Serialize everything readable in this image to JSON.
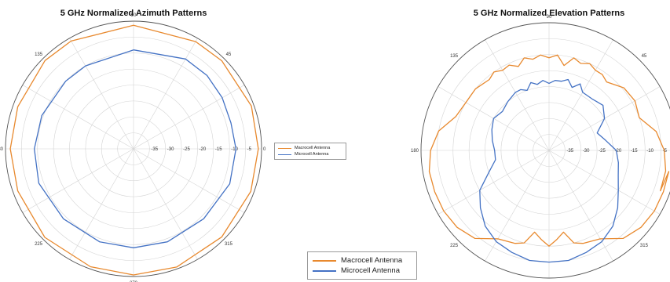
{
  "colors": {
    "macrocell": "#e8892e",
    "microcell": "#4472c4",
    "grid": "#d4d4d4",
    "outer_ring": "#555555"
  },
  "legend": {
    "entries": [
      {
        "label": "Macrocell Antenna",
        "color": "#e8892e"
      },
      {
        "label": "Microcell Antenna",
        "color": "#4472c4"
      }
    ]
  },
  "chart_data": [
    {
      "type": "polar",
      "title": "5 GHz Normalized Azimuth Patterns",
      "radial_ticks": [
        "-35",
        "-30",
        "-25",
        "-20",
        "-15",
        "-10",
        "-5",
        "0"
      ],
      "rlim": [
        -40,
        0
      ],
      "angle_ticks": [
        "90",
        "45",
        "135",
        "180",
        "225",
        "315",
        "270"
      ],
      "grid": true,
      "legend_position": "right",
      "series": [
        {
          "name": "Macrocell Antenna",
          "angle_deg": [
            0,
            20,
            45,
            60,
            90,
            120,
            135,
            160,
            180,
            200,
            225,
            250,
            270,
            290,
            315,
            340
          ],
          "values_db": [
            -1,
            -0.8,
            -1,
            -1.2,
            -1.3,
            -1,
            -0.9,
            -1.5,
            -1.5,
            -1.5,
            -0.8,
            -0.7,
            -0.5,
            -0.6,
            -1,
            -1
          ]
        },
        {
          "name": "Microcell Antenna",
          "angle_deg": [
            0,
            15,
            30,
            45,
            60,
            90,
            120,
            135,
            160,
            180,
            200,
            225,
            250,
            270,
            290,
            315,
            340
          ],
          "values_db": [
            -8,
            -8.5,
            -8,
            -7.5,
            -7.5,
            -9,
            -10,
            -10,
            -9.5,
            -9,
            -8.5,
            -9,
            -9,
            -9,
            -9,
            -9,
            -8
          ]
        }
      ]
    },
    {
      "type": "polar",
      "title": "5 GHz Normalized Elevation Patterns",
      "radial_ticks": [
        "-35",
        "-30",
        "-25",
        "-20",
        "-15",
        "-10",
        "-5",
        "0"
      ],
      "rlim": [
        -40,
        0
      ],
      "angle_ticks": [
        "90",
        "45",
        "135",
        "180",
        "225",
        "315",
        "270"
      ],
      "grid": true,
      "legend_position": "bottom-left",
      "series": [
        {
          "name": "Macrocell Antenna",
          "angle_deg": [
            -20,
            -10,
            0,
            10,
            20,
            30,
            40,
            50,
            55,
            60,
            65,
            70,
            75,
            80,
            85,
            90,
            95,
            100,
            105,
            110,
            115,
            120,
            125,
            130,
            140,
            150,
            160,
            170,
            180,
            190,
            200,
            210,
            220,
            230,
            240,
            250,
            255,
            260,
            265,
            270,
            275,
            280,
            285,
            290,
            300,
            310,
            320,
            330,
            340,
            350
          ],
          "values_db": [
            -3,
            -3,
            -4,
            -6,
            -10,
            -9,
            -9.5,
            -12,
            -11,
            -11,
            -10,
            -11,
            -10,
            -13,
            -10,
            -11,
            -10,
            -11,
            -10,
            -12,
            -10.5,
            -11,
            -10,
            -11,
            -10,
            -10,
            -9,
            -5,
            -3,
            -2,
            -2,
            -2,
            -2.5,
            -4,
            -8,
            -9,
            -10,
            -14,
            -12,
            -10,
            -12,
            -14,
            -10,
            -9,
            -8,
            -4,
            -2.5,
            -2,
            -2,
            -2
          ]
        },
        {
          "name": "Microcell Antenna",
          "angle_deg": [
            0,
            10,
            20,
            30,
            40,
            50,
            60,
            65,
            70,
            75,
            80,
            85,
            90,
            95,
            100,
            105,
            110,
            115,
            120,
            130,
            140,
            150,
            160,
            170,
            180,
            190,
            200,
            210,
            220,
            230,
            240,
            250,
            260,
            270,
            280,
            290,
            300,
            310,
            320,
            330,
            340,
            350
          ],
          "values_db": [
            -19,
            -22,
            -24,
            -20,
            -18,
            -19,
            -19,
            -17,
            -19,
            -17,
            -18,
            -18,
            -19,
            -18,
            -19,
            -18,
            -20,
            -19,
            -19,
            -20,
            -21,
            -20,
            -21,
            -22,
            -23,
            -23,
            -20,
            -15,
            -12,
            -9,
            -7,
            -6,
            -5,
            -5,
            -5,
            -6,
            -7,
            -9,
            -12,
            -15,
            -17,
            -18
          ]
        }
      ]
    }
  ]
}
